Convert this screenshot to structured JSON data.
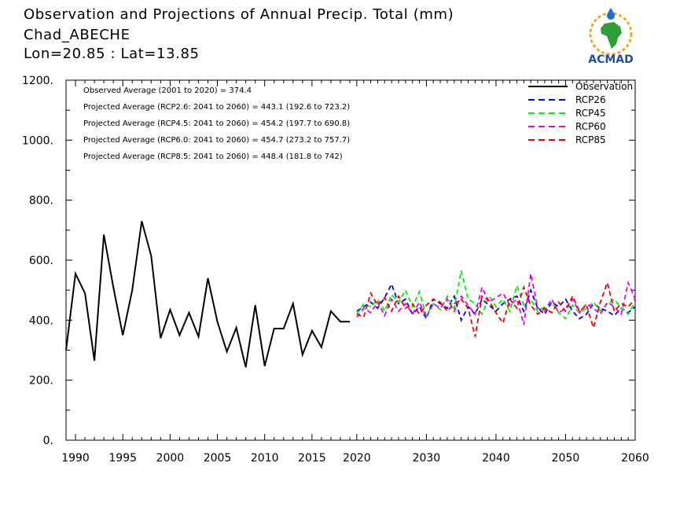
{
  "header": {
    "title": "Observation and Projections of Annual Precip. Total (mm)",
    "station": "Chad_ABECHE",
    "coords": "Lon=20.85 : Lat=13.85"
  },
  "logo": {
    "text": "ACMAD",
    "icon": "africa-globe-logo-icon"
  },
  "colors": {
    "Observation": "#000000",
    "RCP26": "#0000ee",
    "RCP45": "#00ee00",
    "RCP60": "#ee00ee",
    "RCP85": "#ee0000"
  },
  "chart_data": {
    "type": "line",
    "xlim": [
      1989,
      2060
    ],
    "ylim": [
      0,
      1200
    ],
    "x_ticks": [
      "1990",
      "1995",
      "2000",
      "2005",
      "2010",
      "2015",
      "2020",
      "2030",
      "2040",
      "2050",
      "2060"
    ],
    "y_ticks": [
      "0.",
      "200.",
      "400.",
      "600.",
      "800.",
      "1000.",
      "1200."
    ],
    "grid": false,
    "legend_position": "top-right",
    "annotations": [
      "Observed Average (2001 to 2020) = 374.4",
      "Projected Average (RCP2.6: 2041 to 2060) = 443.1 (192.6 to 723.2)",
      "Projected Average (RCP4.5: 2041 to 2060) = 454.2 (197.7 to 690.8)",
      "Projected Average (RCP6.0: 2041 to 2060) = 454.7 (273.2 to 757.7)",
      "Projected Average (RCP8.5: 2041 to 2060) = 448.4 (181.8 to 742)"
    ],
    "series": [
      {
        "name": "Observation",
        "style": "solid",
        "x": [
          1989,
          1990,
          1991,
          1992,
          1993,
          1994,
          1995,
          1996,
          1997,
          1998,
          1999,
          2000,
          2001,
          2002,
          2003,
          2004,
          2005,
          2006,
          2007,
          2008,
          2009,
          2010,
          2011,
          2012,
          2013,
          2014,
          2015,
          2016,
          2017,
          2018,
          2019
        ],
        "values": [
          300,
          555,
          490,
          265,
          685,
          510,
          350,
          500,
          730,
          615,
          340,
          435,
          350,
          425,
          345,
          540,
          395,
          295,
          375,
          243,
          450,
          247,
          372,
          372,
          455,
          285,
          365,
          310,
          430,
          395,
          395
        ]
      },
      {
        "name": "RCP26",
        "style": "dashed",
        "x": [
          2020,
          2021,
          2022,
          2023,
          2024,
          2025,
          2026,
          2027,
          2028,
          2029,
          2030,
          2031,
          2032,
          2033,
          2034,
          2035,
          2036,
          2037,
          2038,
          2039,
          2040,
          2041,
          2042,
          2043,
          2044,
          2045,
          2046,
          2047,
          2048,
          2049,
          2050,
          2051,
          2052,
          2053,
          2054,
          2055,
          2056,
          2057,
          2058,
          2059,
          2060
        ],
        "values": [
          430,
          445,
          460,
          440,
          475,
          520,
          455,
          470,
          420,
          445,
          405,
          470,
          455,
          440,
          480,
          400,
          445,
          420,
          470,
          450,
          430,
          455,
          470,
          480,
          430,
          500,
          440,
          420,
          460,
          445,
          470,
          430,
          405,
          420,
          455,
          440,
          430,
          415,
          440,
          425,
          445
        ]
      },
      {
        "name": "RCP45",
        "style": "dashed",
        "x": [
          2020,
          2021,
          2022,
          2023,
          2024,
          2025,
          2026,
          2027,
          2028,
          2029,
          2030,
          2031,
          2032,
          2033,
          2034,
          2035,
          2036,
          2037,
          2038,
          2039,
          2040,
          2041,
          2042,
          2043,
          2044,
          2045,
          2046,
          2047,
          2048,
          2049,
          2050,
          2051,
          2052,
          2053,
          2054,
          2055,
          2056,
          2057,
          2058,
          2059,
          2060
        ],
        "values": [
          420,
          455,
          445,
          470,
          430,
          485,
          460,
          500,
          445,
          495,
          415,
          455,
          435,
          480,
          440,
          565,
          470,
          455,
          420,
          480,
          445,
          470,
          430,
          515,
          450,
          470,
          430,
          445,
          460,
          425,
          405,
          450,
          425,
          440,
          460,
          430,
          455,
          470,
          440,
          420,
          460
        ]
      },
      {
        "name": "RCP60",
        "style": "dashed",
        "x": [
          2020,
          2021,
          2022,
          2023,
          2024,
          2025,
          2026,
          2027,
          2028,
          2029,
          2030,
          2031,
          2032,
          2033,
          2034,
          2035,
          2036,
          2037,
          2038,
          2039,
          2040,
          2041,
          2042,
          2043,
          2044,
          2045,
          2046,
          2047,
          2048,
          2049,
          2050,
          2051,
          2052,
          2053,
          2054,
          2055,
          2056,
          2057,
          2058,
          2059,
          2060
        ],
        "values": [
          410,
          440,
          425,
          460,
          415,
          470,
          430,
          455,
          420,
          460,
          410,
          455,
          440,
          470,
          430,
          480,
          450,
          420,
          510,
          460,
          475,
          490,
          450,
          470,
          385,
          555,
          440,
          430,
          470,
          425,
          440,
          470,
          425,
          455,
          440,
          420,
          460,
          445,
          420,
          525,
          470
        ]
      },
      {
        "name": "RCP85",
        "style": "dashed",
        "x": [
          2020,
          2021,
          2022,
          2023,
          2024,
          2025,
          2026,
          2027,
          2028,
          2029,
          2030,
          2031,
          2032,
          2033,
          2034,
          2035,
          2036,
          2037,
          2038,
          2039,
          2040,
          2041,
          2042,
          2043,
          2044,
          2045,
          2046,
          2047,
          2048,
          2049,
          2050,
          2051,
          2052,
          2053,
          2054,
          2055,
          2056,
          2057,
          2058,
          2059,
          2060
        ],
        "values": [
          420,
          410,
          490,
          450,
          475,
          430,
          480,
          440,
          455,
          420,
          450,
          470,
          460,
          430,
          455,
          470,
          440,
          345,
          480,
          465,
          425,
          390,
          470,
          440,
          510,
          450,
          420,
          440,
          425,
          460,
          430,
          480,
          430,
          450,
          375,
          460,
          525,
          430,
          455,
          445,
          470
        ]
      }
    ]
  }
}
